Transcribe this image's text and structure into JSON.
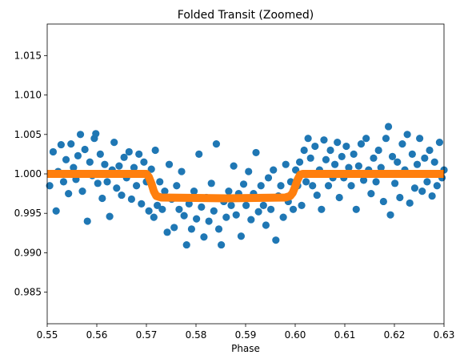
{
  "chart_data": {
    "type": "scatter",
    "title": "Folded Transit (Zoomed)",
    "xlabel": "Phase",
    "ylabel": "",
    "xlim": [
      0.55,
      0.63
    ],
    "ylim": [
      0.981,
      1.019
    ],
    "xticks": [
      0.55,
      0.56,
      0.57,
      0.58,
      0.59,
      0.6,
      0.61,
      0.62,
      0.63
    ],
    "xtick_labels": [
      "0.55",
      "0.56",
      "0.57",
      "0.58",
      "0.59",
      "0.60",
      "0.61",
      "0.62",
      "0.63"
    ],
    "yticks": [
      0.985,
      0.99,
      0.995,
      1.0,
      1.005,
      1.01,
      1.015
    ],
    "ytick_labels": [
      "0.985",
      "0.990",
      "0.995",
      "1.000",
      "1.005",
      "1.010",
      "1.015"
    ],
    "grid": false,
    "series": [
      {
        "kind": "scatter",
        "color": "#1f77b4",
        "points": [
          [
            0.5505,
            0.9985
          ],
          [
            0.5512,
            1.0028
          ],
          [
            0.5518,
            0.9953
          ],
          [
            0.5522,
            1.0003
          ],
          [
            0.5528,
            1.0037
          ],
          [
            0.5533,
            0.999
          ],
          [
            0.5538,
            1.0018
          ],
          [
            0.5543,
            0.9975
          ],
          [
            0.5548,
            1.0038
          ],
          [
            0.5553,
            1.0008
          ],
          [
            0.5558,
            0.9993
          ],
          [
            0.5562,
            1.0023
          ],
          [
            0.5567,
            1.005
          ],
          [
            0.5571,
            0.9978
          ],
          [
            0.5576,
            1.0031
          ],
          [
            0.5581,
            0.994
          ],
          [
            0.5586,
            1.0015
          ],
          [
            0.5591,
            0.9998
          ],
          [
            0.5595,
            1.0045
          ],
          [
            0.5598,
            1.0051
          ],
          [
            0.5602,
            0.9988
          ],
          [
            0.5607,
            1.0025
          ],
          [
            0.5611,
            0.9969
          ],
          [
            0.5616,
            1.0012
          ],
          [
            0.5621,
            0.999
          ],
          [
            0.5626,
            0.9946
          ],
          [
            0.5631,
            1.0005
          ],
          [
            0.5635,
            1.004
          ],
          [
            0.564,
            0.9982
          ],
          [
            0.5645,
            1.001
          ],
          [
            0.565,
            0.9973
          ],
          [
            0.5655,
            1.0021
          ],
          [
            0.566,
            0.9995
          ],
          [
            0.5665,
            1.0028
          ],
          [
            0.567,
            0.9968
          ],
          [
            0.5675,
            1.0008
          ],
          [
            0.568,
            0.9985
          ],
          [
            0.5685,
            1.0025
          ],
          [
            0.569,
            0.9962
          ],
          [
            0.5695,
            1.0015
          ],
          [
            0.57,
            0.999
          ],
          [
            0.5705,
            0.9953
          ],
          [
            0.571,
            1.0006
          ],
          [
            0.5715,
            0.9945
          ],
          [
            0.5718,
            1.003
          ],
          [
            0.5722,
            0.996
          ],
          [
            0.5727,
            0.999
          ],
          [
            0.5732,
            0.9955
          ],
          [
            0.5737,
            0.9978
          ],
          [
            0.5742,
            0.9926
          ],
          [
            0.5746,
            1.0012
          ],
          [
            0.5751,
            0.9968
          ],
          [
            0.5756,
            0.9932
          ],
          [
            0.5761,
            0.9985
          ],
          [
            0.5766,
            0.9955
          ],
          [
            0.5771,
            1.0003
          ],
          [
            0.5776,
            0.9947
          ],
          [
            0.5781,
            0.991
          ],
          [
            0.5786,
            0.9962
          ],
          [
            0.5791,
            0.993
          ],
          [
            0.5796,
            0.9978
          ],
          [
            0.5801,
            0.9943
          ],
          [
            0.5806,
            1.0025
          ],
          [
            0.5811,
            0.9958
          ],
          [
            0.5816,
            0.992
          ],
          [
            0.5821,
            0.997
          ],
          [
            0.5826,
            0.994
          ],
          [
            0.5831,
            0.9988
          ],
          [
            0.5836,
            0.9953
          ],
          [
            0.5841,
            1.0038
          ],
          [
            0.5846,
            0.993
          ],
          [
            0.5851,
            0.991
          ],
          [
            0.5856,
            0.9965
          ],
          [
            0.5861,
            0.9945
          ],
          [
            0.5866,
            0.9978
          ],
          [
            0.5871,
            0.996
          ],
          [
            0.5876,
            1.001
          ],
          [
            0.5881,
            0.9948
          ],
          [
            0.5886,
            0.9975
          ],
          [
            0.5891,
            0.9921
          ],
          [
            0.5896,
            0.9987
          ],
          [
            0.5901,
            0.996
          ],
          [
            0.5906,
            1.0003
          ],
          [
            0.5911,
            0.9942
          ],
          [
            0.5916,
            0.9975
          ],
          [
            0.5921,
            1.0027
          ],
          [
            0.5926,
            0.9952
          ],
          [
            0.5931,
            0.9985
          ],
          [
            0.5936,
            0.996
          ],
          [
            0.5941,
            0.9935
          ],
          [
            0.5946,
            0.9995
          ],
          [
            0.5951,
            0.9955
          ],
          [
            0.5956,
            1.0005
          ],
          [
            0.5961,
            0.9916
          ],
          [
            0.5966,
            0.9972
          ],
          [
            0.5971,
            0.9985
          ],
          [
            0.5976,
            0.9945
          ],
          [
            0.5981,
            1.0012
          ],
          [
            0.5986,
            0.9965
          ],
          [
            0.5991,
            0.999
          ],
          [
            0.5996,
            0.9955
          ],
          [
            0.6001,
            1.0005
          ],
          [
            0.6005,
            0.9985
          ],
          [
            0.6009,
            1.0015
          ],
          [
            0.6013,
            0.996
          ],
          [
            0.6018,
            1.003
          ],
          [
            0.6022,
            0.999
          ],
          [
            0.6026,
            1.0045
          ],
          [
            0.6031,
            1.002
          ],
          [
            0.6035,
            0.9985
          ],
          [
            0.604,
            1.0035
          ],
          [
            0.6044,
            0.9973
          ],
          [
            0.6049,
            1.0005
          ],
          [
            0.6053,
            0.9955
          ],
          [
            0.6058,
            1.0043
          ],
          [
            0.6062,
            1.0018
          ],
          [
            0.6067,
            0.9985
          ],
          [
            0.6071,
            1.003
          ],
          [
            0.6076,
            0.9995
          ],
          [
            0.608,
            1.0012
          ],
          [
            0.6085,
            1.004
          ],
          [
            0.6089,
            0.997
          ],
          [
            0.6094,
            1.0022
          ],
          [
            0.6098,
            0.9995
          ],
          [
            0.6103,
            1.0035
          ],
          [
            0.6108,
            1.0008
          ],
          [
            0.6113,
            0.9985
          ],
          [
            0.6118,
            1.0025
          ],
          [
            0.6123,
            0.9955
          ],
          [
            0.6128,
            1.001
          ],
          [
            0.6133,
            1.0038
          ],
          [
            0.6138,
            0.9992
          ],
          [
            0.6143,
            1.0045
          ],
          [
            0.6148,
            1.0005
          ],
          [
            0.6153,
            0.9975
          ],
          [
            0.6158,
            1.002
          ],
          [
            0.6163,
            0.999
          ],
          [
            0.6168,
            1.003
          ],
          [
            0.6173,
            1.0008
          ],
          [
            0.6178,
            0.9965
          ],
          [
            0.6183,
            1.0045
          ],
          [
            0.6188,
            1.006
          ],
          [
            0.6192,
            0.9948
          ],
          [
            0.6196,
            1.0022
          ],
          [
            0.6201,
            0.9988
          ],
          [
            0.6206,
            1.0015
          ],
          [
            0.6211,
            0.997
          ],
          [
            0.6216,
            1.0038
          ],
          [
            0.6221,
            1.0005
          ],
          [
            0.6226,
            1.005
          ],
          [
            0.6231,
            0.9963
          ],
          [
            0.6236,
            1.0025
          ],
          [
            0.6241,
            0.9982
          ],
          [
            0.6246,
            1.0012
          ],
          [
            0.6251,
            1.0045
          ],
          [
            0.6256,
            0.9978
          ],
          [
            0.6261,
            1.002
          ],
          [
            0.6266,
            0.999
          ],
          [
            0.6271,
            1.003
          ],
          [
            0.6276,
            0.9972
          ],
          [
            0.6281,
            1.0015
          ],
          [
            0.6286,
            0.9985
          ],
          [
            0.6291,
            1.004
          ],
          [
            0.6296,
            0.9995
          ],
          [
            0.63,
            1.0005
          ]
        ]
      },
      {
        "kind": "model",
        "color": "#ff7f0e",
        "points": [
          [
            0.55,
            1.0
          ],
          [
            0.57,
            1.0
          ],
          [
            0.5705,
            0.9996
          ],
          [
            0.571,
            0.9988
          ],
          [
            0.5715,
            0.9978
          ],
          [
            0.572,
            0.9972
          ],
          [
            0.573,
            0.997
          ],
          [
            0.586,
            0.9969
          ],
          [
            0.598,
            0.997
          ],
          [
            0.599,
            0.9972
          ],
          [
            0.5995,
            0.9976
          ],
          [
            0.6,
            0.9984
          ],
          [
            0.6005,
            0.9993
          ],
          [
            0.601,
            0.9999
          ],
          [
            0.6015,
            1.0
          ],
          [
            0.63,
            1.0
          ]
        ]
      }
    ]
  }
}
